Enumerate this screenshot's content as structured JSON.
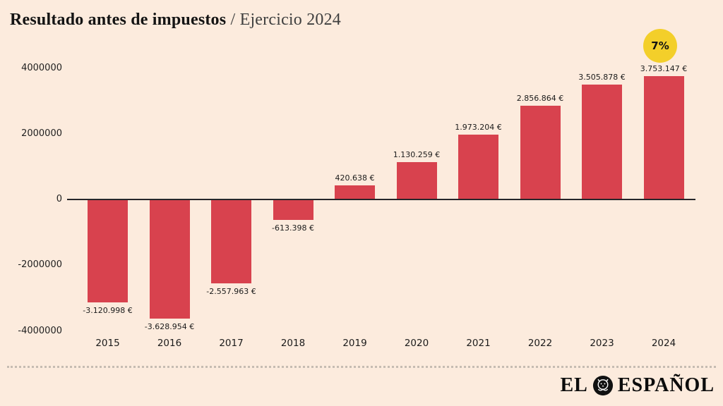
{
  "header": {
    "title": "Resultado antes de impuestos",
    "separator": "/",
    "subtitle": "Ejercicio 2024"
  },
  "badge": {
    "label": "7%",
    "color": "#f3cf2a"
  },
  "chart_data": {
    "type": "bar",
    "title": "Resultado antes de impuestos / Ejercicio 2024",
    "categories": [
      "2015",
      "2016",
      "2017",
      "2018",
      "2019",
      "2020",
      "2021",
      "2022",
      "2023",
      "2024"
    ],
    "values": [
      -3120998,
      -3628954,
      -2557963,
      -613398,
      420638,
      1130259,
      1973204,
      2856864,
      3505878,
      3753147
    ],
    "value_labels": [
      "-3.120.998 €",
      "-3.628.954 €",
      "-2.557.963 €",
      "-613.398 €",
      "420.638 €",
      "1.130.259 €",
      "1.973.204 €",
      "2.856.864 €",
      "3.505.878 €",
      "3.753.147 €"
    ],
    "xlabel": "",
    "ylabel": "",
    "ylim": [
      -4000000,
      4000000
    ],
    "yticks": [
      4000000,
      2000000,
      0,
      -2000000,
      -4000000
    ],
    "ytick_labels": [
      "4000000",
      "2000000",
      "0",
      "-2000000",
      "-4000000"
    ],
    "bar_color": "#d8424e",
    "grid": false,
    "legend": false,
    "annotations": [
      {
        "text": "7%",
        "position": "top-right"
      }
    ]
  },
  "colors": {
    "background": "#fcebdd",
    "bar": "#d8424e",
    "axis_line": "#26262a",
    "badge": "#f3cf2a"
  },
  "footer": {
    "logo_el": "EL",
    "logo_espanol": "ESPAÑOL"
  }
}
